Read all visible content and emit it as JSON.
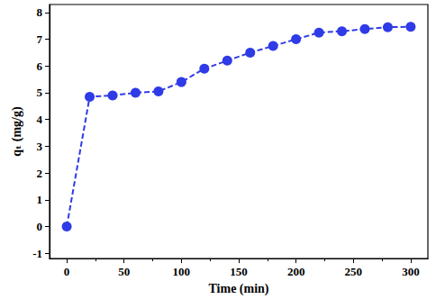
{
  "chart_data": {
    "type": "line",
    "x_label": "Time (min)",
    "y_label": "qₜ (mg/g)",
    "x": [
      0,
      20,
      40,
      60,
      80,
      100,
      120,
      140,
      160,
      180,
      200,
      220,
      240,
      260,
      280,
      300
    ],
    "values": [
      0,
      4.85,
      4.9,
      5.0,
      5.05,
      5.4,
      5.9,
      6.2,
      6.5,
      6.75,
      7.0,
      7.25,
      7.3,
      7.38,
      7.45,
      7.47
    ],
    "color": "#2f3be6",
    "marker": "circle",
    "line_style": "dashed",
    "xlim": [
      -15,
      315
    ],
    "xticks": [
      0,
      50,
      100,
      150,
      200,
      250,
      300
    ],
    "ylim": [
      -1.2,
      8.3
    ],
    "yticks": [
      -1,
      0,
      1,
      2,
      3,
      4,
      5,
      6,
      7,
      8
    ],
    "grid": false
  }
}
